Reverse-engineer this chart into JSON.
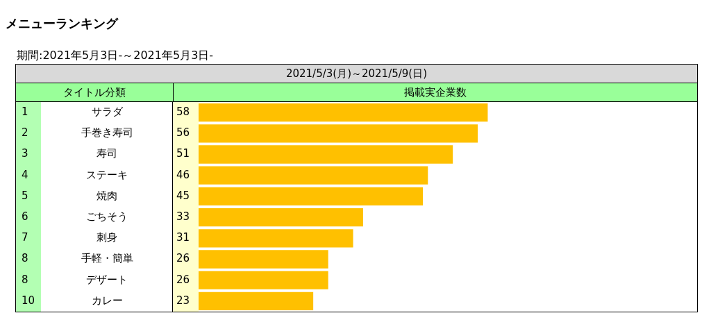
{
  "chart_data": {
    "type": "bar",
    "orientation": "horizontal",
    "title": "メニューランキング",
    "subtitle": "期間:2021年5月3日-～2021年5月3日-",
    "categories": [
      "サラダ",
      "手巻き寿司",
      "寿司",
      "ステーキ",
      "焼肉",
      "ごちそう",
      "刺身",
      "手軽・簡単",
      "デザート",
      "カレー"
    ],
    "values": [
      58,
      56,
      51,
      46,
      45,
      33,
      31,
      26,
      26,
      23
    ],
    "color": "#ffc000",
    "xlim": [
      0,
      100
    ],
    "tick_labels": "y",
    "legend": false,
    "data_labels": true,
    "annotations": [
      "2021/5/3(月)～2021/5/9(日)",
      "タイトル分類",
      "掲載実企業数",
      "1",
      "2",
      "3",
      "4",
      "5",
      "6",
      "7",
      "8",
      "8",
      "10"
    ]
  }
}
